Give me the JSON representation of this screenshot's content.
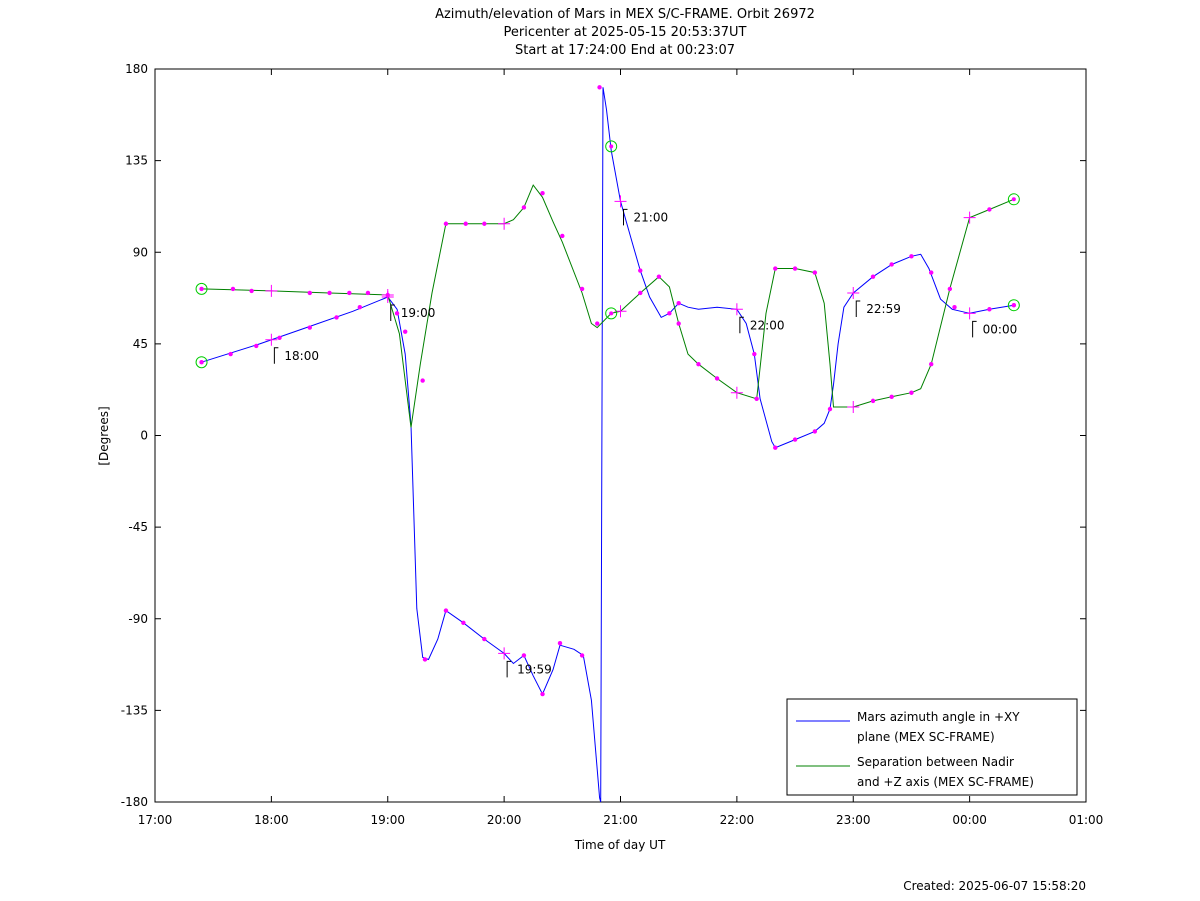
{
  "chart_data": {
    "type": "line",
    "title_lines": [
      "Azimuth/elevation of Mars in MEX S/C-FRAME.  Orbit 26972",
      "Pericenter at 2025-05-15 20:53:37UT",
      "Start at 17:24:00 End at 00:23:07"
    ],
    "xlabel": "Time of day UT",
    "ylabel": "[Degrees]",
    "footer": "Created: 2025-06-07 15:58:20",
    "xlim": [
      17,
      25
    ],
    "ylim": [
      -180,
      180
    ],
    "x_unit": "hours (time of day UT, values past 24 are after midnight)",
    "x_ticks": [
      {
        "value": 17,
        "label": "17:00"
      },
      {
        "value": 18,
        "label": "18:00"
      },
      {
        "value": 19,
        "label": "19:00"
      },
      {
        "value": 20,
        "label": "20:00"
      },
      {
        "value": 21,
        "label": "21:00"
      },
      {
        "value": 22,
        "label": "22:00"
      },
      {
        "value": 23,
        "label": "23:00"
      },
      {
        "value": 24,
        "label": "00:00"
      },
      {
        "value": 25,
        "label": "01:00"
      }
    ],
    "y_ticks": [
      {
        "value": 180,
        "label": "180"
      },
      {
        "value": 135,
        "label": "135"
      },
      {
        "value": 90,
        "label": "90"
      },
      {
        "value": 45,
        "label": "45"
      },
      {
        "value": 0,
        "label": "0"
      },
      {
        "value": -45,
        "label": "-45"
      },
      {
        "value": -90,
        "label": "-90"
      },
      {
        "value": -135,
        "label": "-135"
      },
      {
        "value": -180,
        "label": "-180"
      }
    ],
    "grid": false,
    "legend_position": "bottom-right",
    "series": [
      {
        "name_lines": [
          "Mars azimuth angle in +XY",
          "plane (MEX SC-FRAME)"
        ],
        "color": "#0000ff",
        "points": [
          [
            17.4,
            36
          ],
          [
            17.9,
            45
          ],
          [
            18.3,
            53
          ],
          [
            18.7,
            61
          ],
          [
            19.0,
            68
          ],
          [
            19.08,
            62
          ],
          [
            19.15,
            40
          ],
          [
            19.2,
            5
          ],
          [
            19.25,
            -85
          ],
          [
            19.3,
            -109
          ],
          [
            19.35,
            -110
          ],
          [
            19.43,
            -100
          ],
          [
            19.5,
            -86
          ],
          [
            19.65,
            -92
          ],
          [
            19.83,
            -100
          ],
          [
            20.0,
            -107
          ],
          [
            20.08,
            -112
          ],
          [
            20.17,
            -108
          ],
          [
            20.25,
            -118
          ],
          [
            20.33,
            -127
          ],
          [
            20.42,
            -115
          ],
          [
            20.48,
            -103
          ],
          [
            20.6,
            -105
          ],
          [
            20.68,
            -108
          ],
          [
            20.75,
            -130
          ],
          [
            20.82,
            -178
          ],
          [
            20.83,
            -180
          ],
          [
            20.84,
            0
          ],
          [
            20.85,
            171
          ],
          [
            20.88,
            160
          ],
          [
            20.92,
            140
          ],
          [
            21.0,
            115
          ],
          [
            21.1,
            95
          ],
          [
            21.17,
            81
          ],
          [
            21.25,
            68
          ],
          [
            21.35,
            58
          ],
          [
            21.42,
            60
          ],
          [
            21.5,
            65
          ],
          [
            21.58,
            63
          ],
          [
            21.67,
            62
          ],
          [
            21.83,
            63
          ],
          [
            22.0,
            62
          ],
          [
            22.08,
            55
          ],
          [
            22.15,
            40
          ],
          [
            22.2,
            18
          ],
          [
            22.3,
            -3
          ],
          [
            22.33,
            -6
          ],
          [
            22.5,
            -2
          ],
          [
            22.67,
            2
          ],
          [
            22.75,
            6
          ],
          [
            22.8,
            13
          ],
          [
            22.83,
            25
          ],
          [
            22.87,
            45
          ],
          [
            22.92,
            63
          ],
          [
            23.0,
            70
          ],
          [
            23.17,
            78
          ],
          [
            23.33,
            84
          ],
          [
            23.5,
            88
          ],
          [
            23.58,
            89
          ],
          [
            23.65,
            82
          ],
          [
            23.75,
            67
          ],
          [
            23.85,
            62
          ],
          [
            24.0,
            60
          ],
          [
            24.17,
            62
          ],
          [
            24.38,
            64
          ]
        ],
        "markers": [
          [
            17.4,
            36
          ],
          [
            17.65,
            40
          ],
          [
            17.87,
            44
          ],
          [
            18.07,
            48
          ],
          [
            18.33,
            53
          ],
          [
            18.56,
            58
          ],
          [
            18.76,
            63
          ],
          [
            19.15,
            51
          ],
          [
            19.3,
            27
          ],
          [
            19.32,
            -110
          ],
          [
            19.5,
            -86
          ],
          [
            19.65,
            -92
          ],
          [
            19.83,
            -100
          ],
          [
            20.17,
            -108
          ],
          [
            20.33,
            -127
          ],
          [
            20.48,
            -102
          ],
          [
            20.67,
            -108
          ],
          [
            20.82,
            171
          ],
          [
            21.17,
            81
          ],
          [
            21.42,
            60
          ],
          [
            21.5,
            65
          ],
          [
            22.15,
            40
          ],
          [
            22.33,
            -6
          ],
          [
            22.5,
            -2
          ],
          [
            22.67,
            2
          ],
          [
            22.8,
            13
          ],
          [
            23.17,
            78
          ],
          [
            23.33,
            84
          ],
          [
            23.5,
            88
          ],
          [
            23.67,
            80
          ],
          [
            23.87,
            63
          ],
          [
            24.17,
            62
          ],
          [
            24.38,
            64
          ]
        ],
        "crosses": [
          [
            18.0,
            47
          ],
          [
            19.0,
            68
          ],
          [
            20.0,
            -107
          ],
          [
            21.0,
            115
          ],
          [
            22.0,
            62
          ],
          [
            23.0,
            70
          ],
          [
            24.0,
            60
          ]
        ],
        "circles": [
          [
            17.4,
            36
          ],
          [
            20.92,
            142
          ],
          [
            24.38,
            64
          ]
        ]
      },
      {
        "name_lines": [
          "Separation between Nadir",
          "and +Z axis (MEX SC-FRAME)"
        ],
        "color": "#008000",
        "points": [
          [
            17.4,
            72
          ],
          [
            18.0,
            71
          ],
          [
            18.5,
            70
          ],
          [
            19.0,
            69
          ],
          [
            19.1,
            50
          ],
          [
            19.2,
            4
          ],
          [
            19.28,
            35
          ],
          [
            19.38,
            70
          ],
          [
            19.5,
            104
          ],
          [
            19.6,
            104
          ],
          [
            19.83,
            104
          ],
          [
            20.0,
            104
          ],
          [
            20.08,
            106
          ],
          [
            20.17,
            112
          ],
          [
            20.25,
            123
          ],
          [
            20.33,
            117
          ],
          [
            20.42,
            105
          ],
          [
            20.5,
            95
          ],
          [
            20.67,
            70
          ],
          [
            20.75,
            55
          ],
          [
            20.8,
            53
          ],
          [
            20.92,
            60
          ],
          [
            21.0,
            61
          ],
          [
            21.17,
            70
          ],
          [
            21.33,
            78
          ],
          [
            21.42,
            73
          ],
          [
            21.5,
            55
          ],
          [
            21.58,
            40
          ],
          [
            21.67,
            35
          ],
          [
            21.83,
            28
          ],
          [
            22.0,
            21
          ],
          [
            22.17,
            18
          ],
          [
            22.25,
            60
          ],
          [
            22.33,
            82
          ],
          [
            22.5,
            82
          ],
          [
            22.67,
            80
          ],
          [
            22.75,
            65
          ],
          [
            22.8,
            35
          ],
          [
            22.83,
            14
          ],
          [
            23.0,
            14
          ],
          [
            23.17,
            17
          ],
          [
            23.33,
            19
          ],
          [
            23.5,
            21
          ],
          [
            23.58,
            23
          ],
          [
            23.67,
            35
          ],
          [
            23.83,
            72
          ],
          [
            24.0,
            107
          ],
          [
            24.17,
            111
          ],
          [
            24.38,
            116
          ]
        ],
        "markers": [
          [
            17.4,
            72
          ],
          [
            17.67,
            72
          ],
          [
            17.83,
            71
          ],
          [
            18.33,
            70
          ],
          [
            18.5,
            70
          ],
          [
            18.67,
            70
          ],
          [
            18.83,
            70
          ],
          [
            19.0,
            69
          ],
          [
            19.08,
            60
          ],
          [
            19.5,
            104
          ],
          [
            19.67,
            104
          ],
          [
            19.83,
            104
          ],
          [
            20.17,
            112
          ],
          [
            20.33,
            119
          ],
          [
            20.5,
            98
          ],
          [
            20.67,
            72
          ],
          [
            20.8,
            55
          ],
          [
            21.17,
            70
          ],
          [
            21.33,
            78
          ],
          [
            21.5,
            55
          ],
          [
            21.67,
            35
          ],
          [
            21.83,
            28
          ],
          [
            22.17,
            18
          ],
          [
            22.33,
            82
          ],
          [
            22.5,
            82
          ],
          [
            22.67,
            80
          ],
          [
            23.17,
            17
          ],
          [
            23.33,
            19
          ],
          [
            23.5,
            21
          ],
          [
            23.67,
            35
          ],
          [
            23.83,
            72
          ],
          [
            24.17,
            111
          ]
        ],
        "crosses": [
          [
            18.0,
            71
          ],
          [
            19.0,
            69
          ],
          [
            20.0,
            104
          ],
          [
            21.0,
            61
          ],
          [
            22.0,
            21
          ],
          [
            23.0,
            14
          ],
          [
            24.0,
            107
          ]
        ],
        "circles": [
          [
            17.4,
            72
          ],
          [
            20.92,
            60
          ],
          [
            24.38,
            116
          ]
        ]
      }
    ],
    "annotations": [
      {
        "x": 18.0,
        "y": 47,
        "text": "18:00"
      },
      {
        "x": 19.0,
        "y": 68,
        "text": "19:00"
      },
      {
        "x": 20.0,
        "y": -107,
        "text": "19:59"
      },
      {
        "x": 21.0,
        "y": 115,
        "text": "21:00"
      },
      {
        "x": 22.0,
        "y": 62,
        "text": "22:00"
      },
      {
        "x": 23.0,
        "y": 70,
        "text": "22:59"
      },
      {
        "x": 24.0,
        "y": 60,
        "text": "00:00"
      }
    ],
    "colors": {
      "marker": "#ff00ff",
      "circle": "#00cc00",
      "axis": "#000000"
    }
  }
}
